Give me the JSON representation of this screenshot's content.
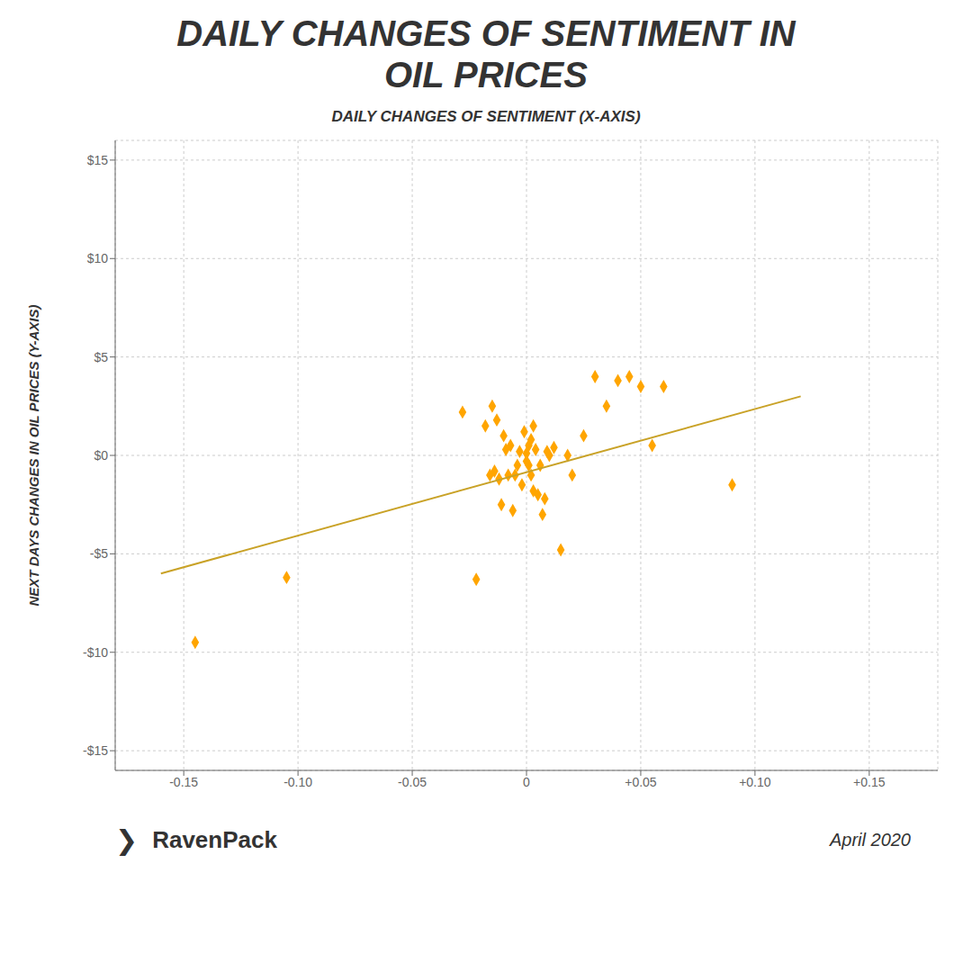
{
  "chart_data": {
    "type": "scatter",
    "title": "DAILY CHANGES OF SENTIMENT IN OIL PRICES",
    "subtitle": "DAILY CHANGES OF SENTIMENT (X-AXIS)",
    "y_label": "NEXT DAYS CHANGES IN OIL PRICES (Y-AXIS)",
    "annotations": [
      "❯",
      "RavenPack",
      "April 2020"
    ],
    "xlim": [
      -0.18,
      0.18
    ],
    "ylim": [
      -16,
      16
    ],
    "xticks": [
      -0.15,
      {
        "value": -0.1,
        "label": "-0.10"
      },
      -0.05,
      0,
      {
        "value": 0.05,
        "label": "+0.05"
      },
      {
        "value": 0.1,
        "label": "+0.10"
      },
      {
        "value": 0.15,
        "label": "+0.15"
      }
    ],
    "yticks": [
      {
        "value": -15,
        "label": "-$15"
      },
      {
        "value": -10,
        "label": "-$10"
      },
      {
        "value": -5,
        "label": "-$5"
      },
      {
        "value": 0,
        "label": "$0"
      },
      {
        "value": 5,
        "label": "$5"
      },
      {
        "value": 10,
        "label": "$10"
      },
      {
        "value": 15,
        "label": "$15"
      }
    ],
    "grid": true,
    "series": [
      {
        "type": "scatter",
        "marker": "diamond",
        "color": "#FFA500",
        "x": [
          -0.145,
          -0.105,
          -0.028,
          -0.022,
          -0.018,
          -0.016,
          -0.015,
          -0.014,
          -0.013,
          -0.012,
          -0.011,
          -0.01,
          -0.009,
          -0.008,
          -0.007,
          -0.006,
          -0.005,
          -0.004,
          -0.003,
          -0.002,
          -0.001,
          0.0,
          0.0,
          0.001,
          0.001,
          0.002,
          0.002,
          0.003,
          0.003,
          0.004,
          0.005,
          0.006,
          0.007,
          0.008,
          0.009,
          0.01,
          0.012,
          0.015,
          0.018,
          0.02,
          0.025,
          0.03,
          0.035,
          0.04,
          0.045,
          0.05,
          0.055,
          0.06,
          0.09
        ],
        "values": [
          -9.5,
          -6.2,
          2.2,
          -6.3,
          1.5,
          -1.0,
          2.5,
          -0.8,
          1.8,
          -1.2,
          -2.5,
          1.0,
          0.3,
          -1.0,
          0.5,
          -2.8,
          -1.0,
          -0.5,
          0.2,
          -1.5,
          1.2,
          0.1,
          -0.3,
          0.5,
          -0.5,
          0.8,
          -1.0,
          1.5,
          -1.8,
          0.3,
          -2.0,
          -0.5,
          -3.0,
          -2.2,
          0.2,
          0.0,
          0.4,
          -4.8,
          0.0,
          -1.0,
          1.0,
          4.0,
          2.5,
          3.8,
          4.0,
          3.5,
          0.5,
          3.5,
          -1.5
        ]
      },
      {
        "type": "line",
        "color": "#C9A227",
        "x": [
          -0.16,
          0.12
        ],
        "values": [
          -6.0,
          3.0
        ]
      }
    ]
  }
}
